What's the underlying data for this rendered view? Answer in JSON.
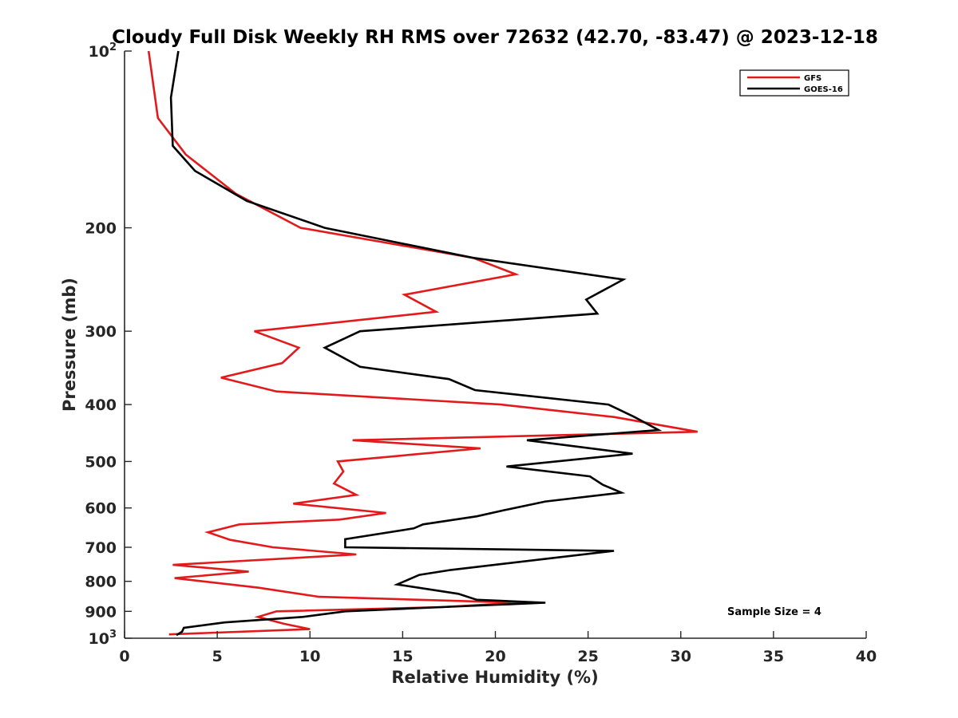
{
  "chart_data": {
    "type": "line",
    "title": "Cloudy Full Disk Weekly RH RMS over 72632 (42.70, -83.47) @ 2023-12-18",
    "xlabel": "Relative Humidity (%)",
    "ylabel": "Pressure (mb)",
    "xlim": [
      0,
      40
    ],
    "ylim": [
      100,
      1000
    ],
    "yscale": "log",
    "y_reversed": true,
    "grid": false,
    "legend_position": "top-right",
    "xticks": [
      {
        "value": 0,
        "label": "0"
      },
      {
        "value": 5,
        "label": "5"
      },
      {
        "value": 10,
        "label": "10"
      },
      {
        "value": 15,
        "label": "15"
      },
      {
        "value": 20,
        "label": "20"
      },
      {
        "value": 25,
        "label": "25"
      },
      {
        "value": 30,
        "label": "30"
      },
      {
        "value": 35,
        "label": "35"
      },
      {
        "value": 40,
        "label": "40"
      }
    ],
    "yticks": [
      {
        "value": 100,
        "base": "10",
        "exp": "2"
      },
      {
        "value": 200,
        "base": "200",
        "exp": ""
      },
      {
        "value": 300,
        "base": "300",
        "exp": ""
      },
      {
        "value": 400,
        "base": "400",
        "exp": ""
      },
      {
        "value": 500,
        "base": "500",
        "exp": ""
      },
      {
        "value": 600,
        "base": "600",
        "exp": ""
      },
      {
        "value": 700,
        "base": "700",
        "exp": ""
      },
      {
        "value": 800,
        "base": "800",
        "exp": ""
      },
      {
        "value": 900,
        "base": "900",
        "exp": ""
      },
      {
        "value": 1000,
        "base": "10",
        "exp": "3"
      }
    ],
    "series": [
      {
        "name": "GFS",
        "color": "#e31a1c",
        "points": [
          [
            1.3,
            100
          ],
          [
            1.8,
            130
          ],
          [
            3.3,
            150
          ],
          [
            6.0,
            175
          ],
          [
            9.5,
            200
          ],
          [
            18.8,
            225
          ],
          [
            21.1,
            240
          ],
          [
            15.1,
            260
          ],
          [
            16.8,
            278
          ],
          [
            7.0,
            300
          ],
          [
            9.4,
            320
          ],
          [
            8.5,
            340
          ],
          [
            5.2,
            360
          ],
          [
            8.2,
            380
          ],
          [
            20.3,
            400
          ],
          [
            26.4,
            420
          ],
          [
            30.9,
            445
          ],
          [
            12.3,
            460
          ],
          [
            19.2,
            475
          ],
          [
            11.5,
            500
          ],
          [
            11.8,
            520
          ],
          [
            11.3,
            545
          ],
          [
            12.5,
            570
          ],
          [
            9.1,
            590
          ],
          [
            14.1,
            612
          ],
          [
            11.6,
            628
          ],
          [
            6.2,
            640
          ],
          [
            4.5,
            660
          ],
          [
            5.7,
            680
          ],
          [
            8.0,
            700
          ],
          [
            12.5,
            720
          ],
          [
            2.6,
            750
          ],
          [
            6.7,
            770
          ],
          [
            2.7,
            790
          ],
          [
            7.2,
            820
          ],
          [
            10.5,
            850
          ],
          [
            21.3,
            870
          ],
          [
            17.1,
            885
          ],
          [
            8.2,
            900
          ],
          [
            7.2,
            920
          ],
          [
            8.6,
            945
          ],
          [
            10.0,
            965
          ],
          [
            2.4,
            985
          ]
        ]
      },
      {
        "name": "GOES-16",
        "color": "#000000",
        "points": [
          [
            2.9,
            100
          ],
          [
            2.5,
            120
          ],
          [
            2.6,
            145
          ],
          [
            3.8,
            160
          ],
          [
            6.6,
            180
          ],
          [
            10.8,
            200
          ],
          [
            18.8,
            225
          ],
          [
            26.9,
            245
          ],
          [
            24.9,
            265
          ],
          [
            25.5,
            280
          ],
          [
            12.7,
            300
          ],
          [
            10.8,
            320
          ],
          [
            12.7,
            345
          ],
          [
            17.5,
            362
          ],
          [
            18.9,
            378
          ],
          [
            26.1,
            400
          ],
          [
            27.5,
            420
          ],
          [
            28.8,
            442
          ],
          [
            21.7,
            460
          ],
          [
            27.4,
            485
          ],
          [
            20.6,
            510
          ],
          [
            25.1,
            530
          ],
          [
            25.8,
            548
          ],
          [
            26.8,
            565
          ],
          [
            22.7,
            585
          ],
          [
            20.5,
            605
          ],
          [
            19.0,
            620
          ],
          [
            16.1,
            640
          ],
          [
            15.6,
            650
          ],
          [
            11.9,
            678
          ],
          [
            11.9,
            700
          ],
          [
            26.4,
            710
          ],
          [
            17.6,
            765
          ],
          [
            15.9,
            780
          ],
          [
            14.7,
            810
          ],
          [
            18.0,
            840
          ],
          [
            19.0,
            860
          ],
          [
            22.7,
            870
          ],
          [
            17.1,
            885
          ],
          [
            11.9,
            900
          ],
          [
            9.6,
            920
          ],
          [
            5.4,
            940
          ],
          [
            3.2,
            960
          ],
          [
            3.1,
            975
          ],
          [
            2.8,
            988
          ]
        ]
      }
    ],
    "annotation": "Sample Size = 4"
  }
}
